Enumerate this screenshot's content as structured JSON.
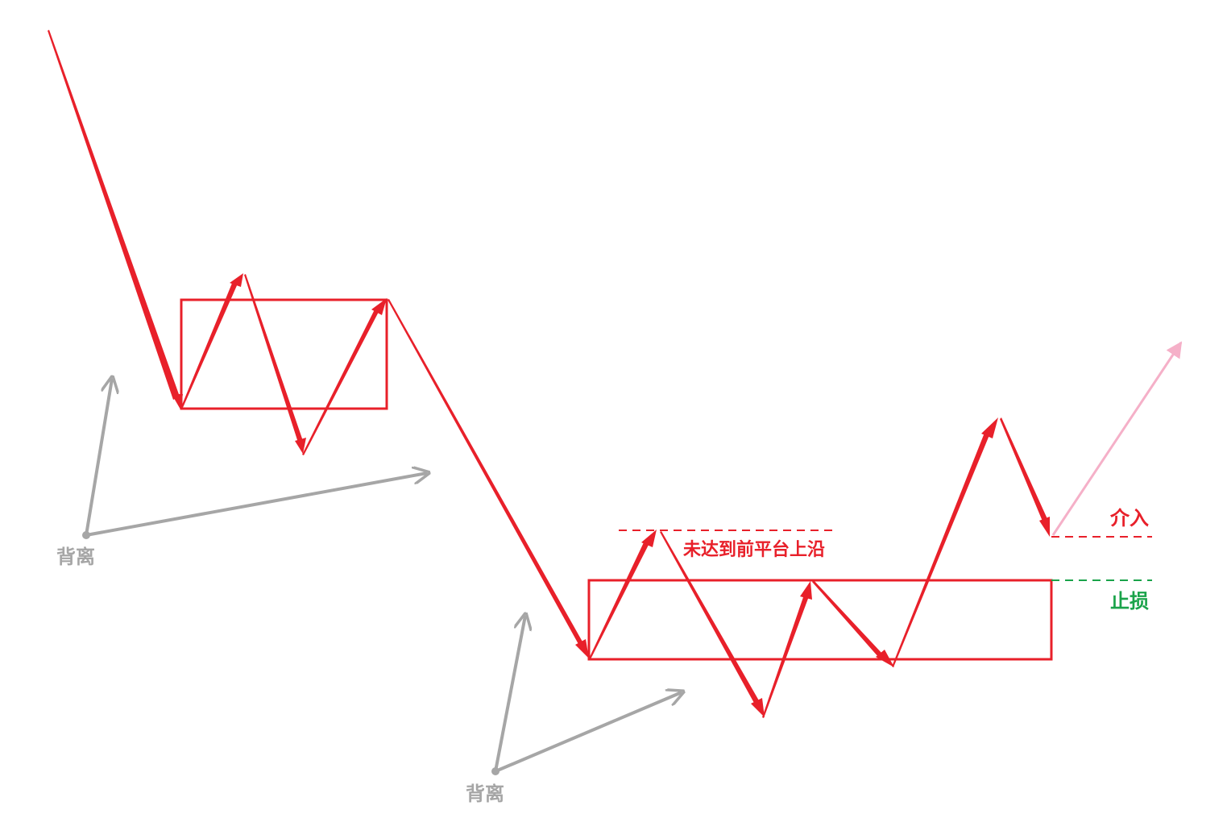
{
  "colors": {
    "trend": "#e8202a",
    "divergence": "#a6a6a6",
    "entry_line": "#e8202a",
    "stop_line": "#1aa34a",
    "projection": "#f5b0c8",
    "background": "#ffffff"
  },
  "labels": {
    "divergence_1": "背离",
    "divergence_2": "背离",
    "below_prior_top": "未达到前平台上沿",
    "entry": "介入",
    "stop_loss": "止损"
  }
}
